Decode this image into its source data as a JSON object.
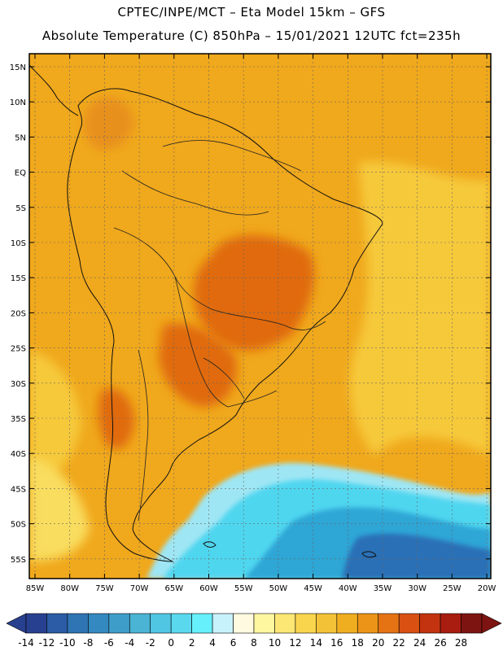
{
  "header": {
    "line1": "CPTEC/INPE/MCT –  Eta Model 15km – GFS",
    "line2": "Absolute Temperature (C) 850hPa – 15/01/2021 12UTC fct=235h"
  },
  "map": {
    "lat_labels": [
      "15N",
      "10N",
      "5N",
      "EQ",
      "5S",
      "10S",
      "15S",
      "20S",
      "25S",
      "30S",
      "35S",
      "40S",
      "45S",
      "50S",
      "55S"
    ],
    "lon_labels": [
      "85W",
      "80W",
      "75W",
      "70W",
      "65W",
      "60W",
      "55W",
      "50W",
      "45W",
      "40W",
      "35W",
      "30W",
      "25W",
      "20W"
    ],
    "colors": {
      "background_field": "#f0a81c",
      "hot_field": "#e8901a",
      "hotter_field": "#e06a10",
      "ocean_warm": "#f6c93a",
      "ocean_pale": "#f9dd5f",
      "cold_light": "#9fe6f4",
      "cold": "#4fd6ef",
      "colder": "#2ea6d6",
      "coldest": "#2a70b6",
      "coast": "#111111"
    }
  },
  "colorbar": {
    "labels": [
      "-14",
      "-12",
      "-10",
      "-8",
      "-6",
      "-4",
      "-2",
      "0",
      "2",
      "4",
      "6",
      "8",
      "10",
      "12",
      "14",
      "16",
      "18",
      "20",
      "22",
      "24",
      "26",
      "28"
    ],
    "colors": [
      "#27408f",
      "#2b5ca5",
      "#2f74b3",
      "#3489c0",
      "#3f9ec9",
      "#4bb3d4",
      "#51c6e3",
      "#5ad9ee",
      "#66f0fb",
      "#c8f2fb",
      "#fffae0",
      "#fff7a0",
      "#fde774",
      "#f9d54e",
      "#f3c236",
      "#efad20",
      "#ec9418",
      "#e57314",
      "#d85012",
      "#c3330f",
      "#a91c10",
      "#7d1411"
    ],
    "left_arrow_color": "#27408f",
    "right_arrow_color": "#7d1411"
  }
}
